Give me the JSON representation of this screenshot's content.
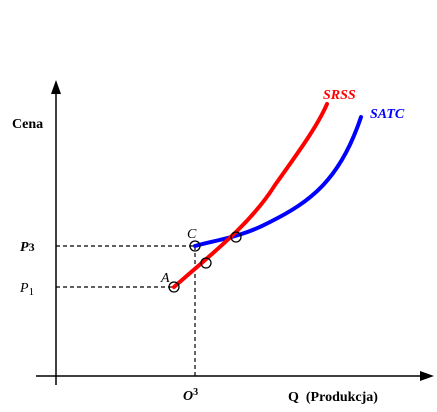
{
  "axes": {
    "y_label": "Cena",
    "x_label": "Q  (Produkcja)"
  },
  "curves": {
    "srss": {
      "label": "SRSS",
      "color": "#ff0000"
    },
    "satc": {
      "label": "SATC",
      "color": "#0000ff"
    }
  },
  "points": {
    "a": {
      "label": "A"
    },
    "c": {
      "label": "C"
    }
  },
  "ticks": {
    "p3": {
      "base": "P",
      "sub": "3"
    },
    "p1": {
      "base": "P",
      "sub": "1"
    },
    "o3": {
      "base": "O",
      "sup": "3"
    }
  }
}
